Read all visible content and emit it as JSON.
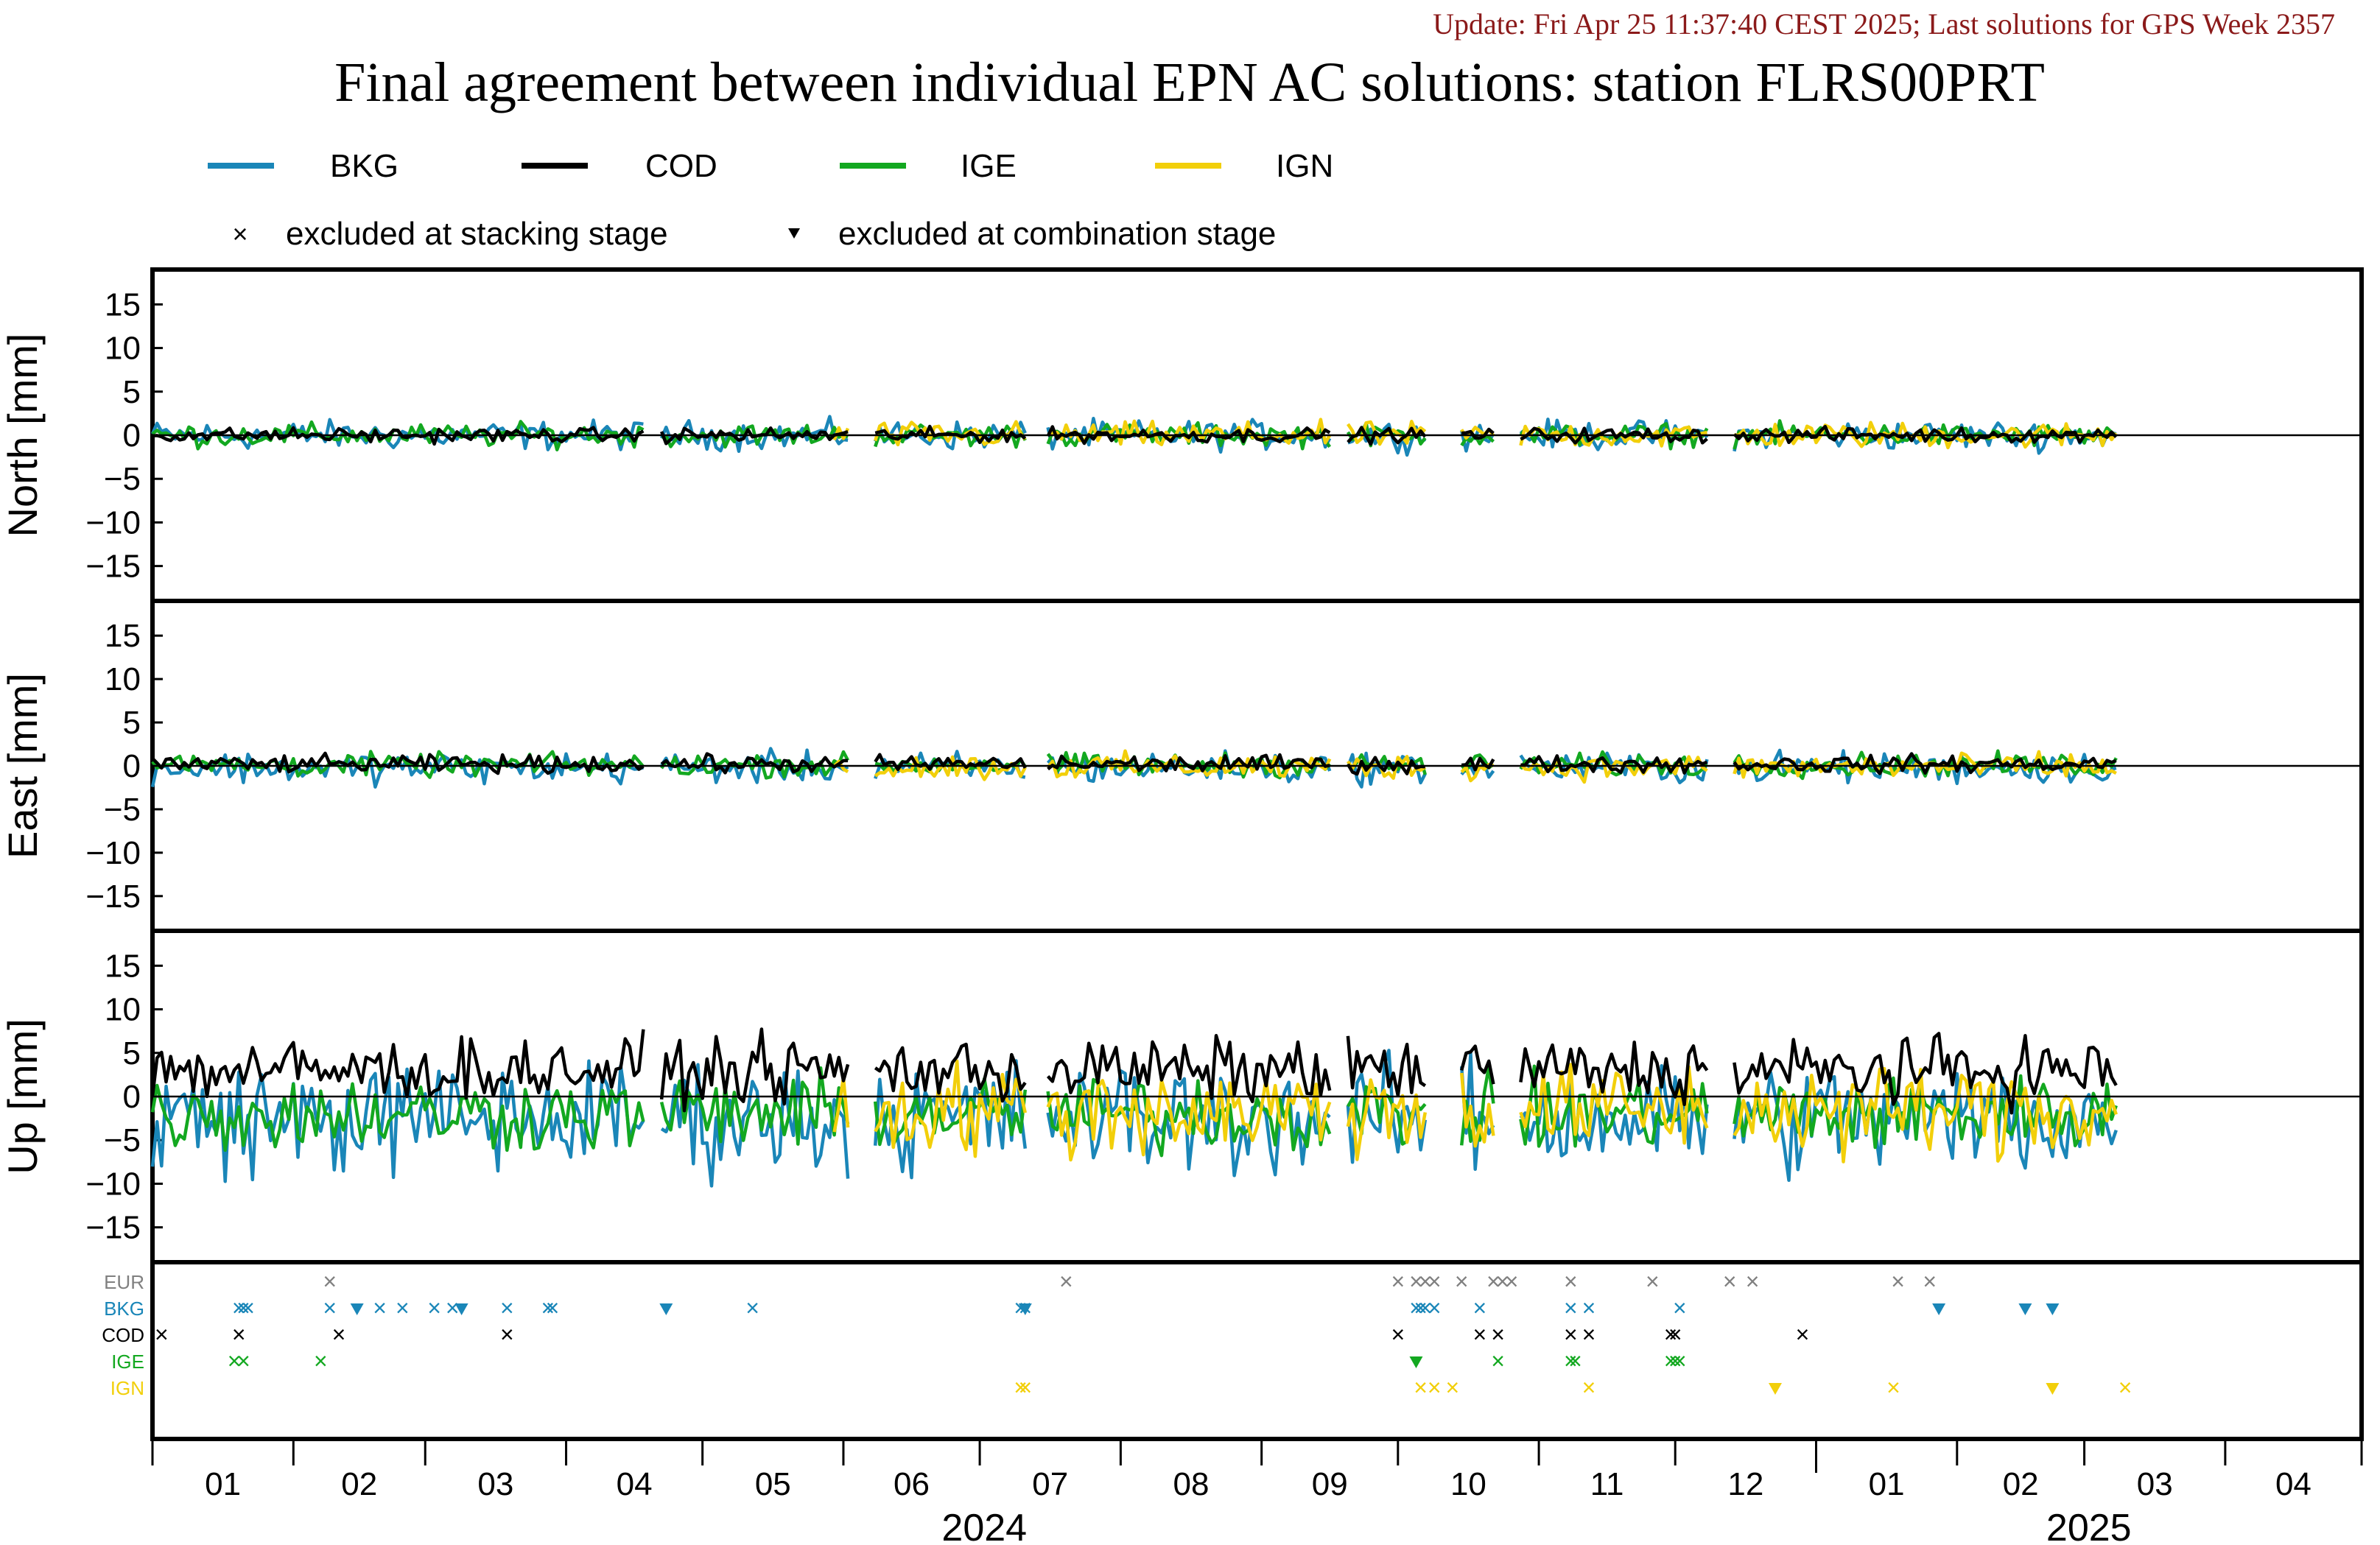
{
  "update_line": "Update: Fri Apr 25 11:37:40 CEST 2025; Last solutions for GPS Week 2357",
  "title": "Final agreement between individual EPN AC solutions: station FLRS00PRT",
  "legend": {
    "series": [
      {
        "name": "BKG",
        "color": "#1a86b8"
      },
      {
        "name": "COD",
        "color": "#000000"
      },
      {
        "name": "IGE",
        "color": "#13a820"
      },
      {
        "name": "IGN",
        "color": "#f2cf0a"
      }
    ],
    "stacking_label": "excluded at stacking stage",
    "combination_label": "excluded at combination stage"
  },
  "colors": {
    "update_text": "#8b1a1a",
    "axis": "#000000",
    "eur_marker": "#808080"
  },
  "x_axis": {
    "months": [
      "01",
      "02",
      "03",
      "04",
      "05",
      "06",
      "07",
      "08",
      "09",
      "10",
      "11",
      "12",
      "01",
      "02",
      "03",
      "04"
    ],
    "years": [
      "2024",
      "2025"
    ]
  },
  "chart_data": [
    {
      "type": "line",
      "ylabel": "North [mm]",
      "ylim": [
        -19,
        19
      ],
      "yticks": [
        15,
        10,
        5,
        0,
        -5,
        -10,
        -15
      ],
      "xlim_days": [
        0,
        486
      ],
      "amplitudes": {
        "BKG": 1.0,
        "COD": 0.5,
        "IGE": 0.8,
        "IGN": 0.9
      },
      "offsets": {
        "BKG": 0,
        "COD": 0,
        "IGE": 0,
        "IGN": 0
      }
    },
    {
      "type": "line",
      "ylabel": "East [mm]",
      "ylim": [
        -19,
        19
      ],
      "yticks": [
        15,
        10,
        5,
        0,
        -5,
        -10,
        -15
      ],
      "xlim_days": [
        0,
        486
      ],
      "amplitudes": {
        "BKG": 1.1,
        "COD": 0.6,
        "IGE": 0.8,
        "IGN": 0.9
      },
      "offsets": {
        "BKG": -0.2,
        "COD": 0.2,
        "IGE": 0.1,
        "IGN": -0.1
      }
    },
    {
      "type": "line",
      "ylabel": "Up [mm]",
      "ylim": [
        -19,
        19
      ],
      "yticks": [
        15,
        10,
        5,
        0,
        -5,
        -10,
        -15
      ],
      "xlim_days": [
        0,
        486
      ],
      "amplitudes": {
        "BKG": 4.0,
        "COD": 2.2,
        "IGE": 2.6,
        "IGN": 3.2
      },
      "offsets": {
        "BKG": -2.5,
        "COD": 3.0,
        "IGE": -2.0,
        "IGN": -1.5
      }
    }
  ],
  "exclusions": {
    "rows": [
      {
        "label": "EUR",
        "color": "#808080",
        "x_days": [
          39,
          201,
          274,
          278,
          280,
          282,
          288,
          295,
          297,
          299,
          312,
          330,
          347,
          352,
          384,
          391
        ],
        "tri_days": []
      },
      {
        "label": "BKG",
        "color": "#1a86b8",
        "x_days": [
          19,
          20,
          21,
          39,
          50,
          55,
          62,
          66,
          78,
          87,
          88,
          132,
          191,
          192,
          278,
          279,
          280,
          282,
          292,
          312,
          316,
          336
        ],
        "tri_days": [
          45,
          68,
          113,
          192,
          393,
          412,
          418
        ]
      },
      {
        "label": "COD",
        "color": "#000000",
        "x_days": [
          2,
          19,
          41,
          78,
          274,
          292,
          296,
          312,
          316,
          334,
          335,
          363
        ],
        "tri_days": []
      },
      {
        "label": "IGE",
        "color": "#13a820",
        "x_days": [
          18,
          20,
          37,
          296,
          312,
          313,
          334,
          335,
          336
        ],
        "tri_days": [
          278
        ]
      },
      {
        "label": "IGN",
        "color": "#f2cf0a",
        "x_days": [
          191,
          192,
          279,
          282,
          286,
          316,
          383,
          434
        ],
        "tri_days": [
          357,
          418
        ]
      }
    ]
  }
}
